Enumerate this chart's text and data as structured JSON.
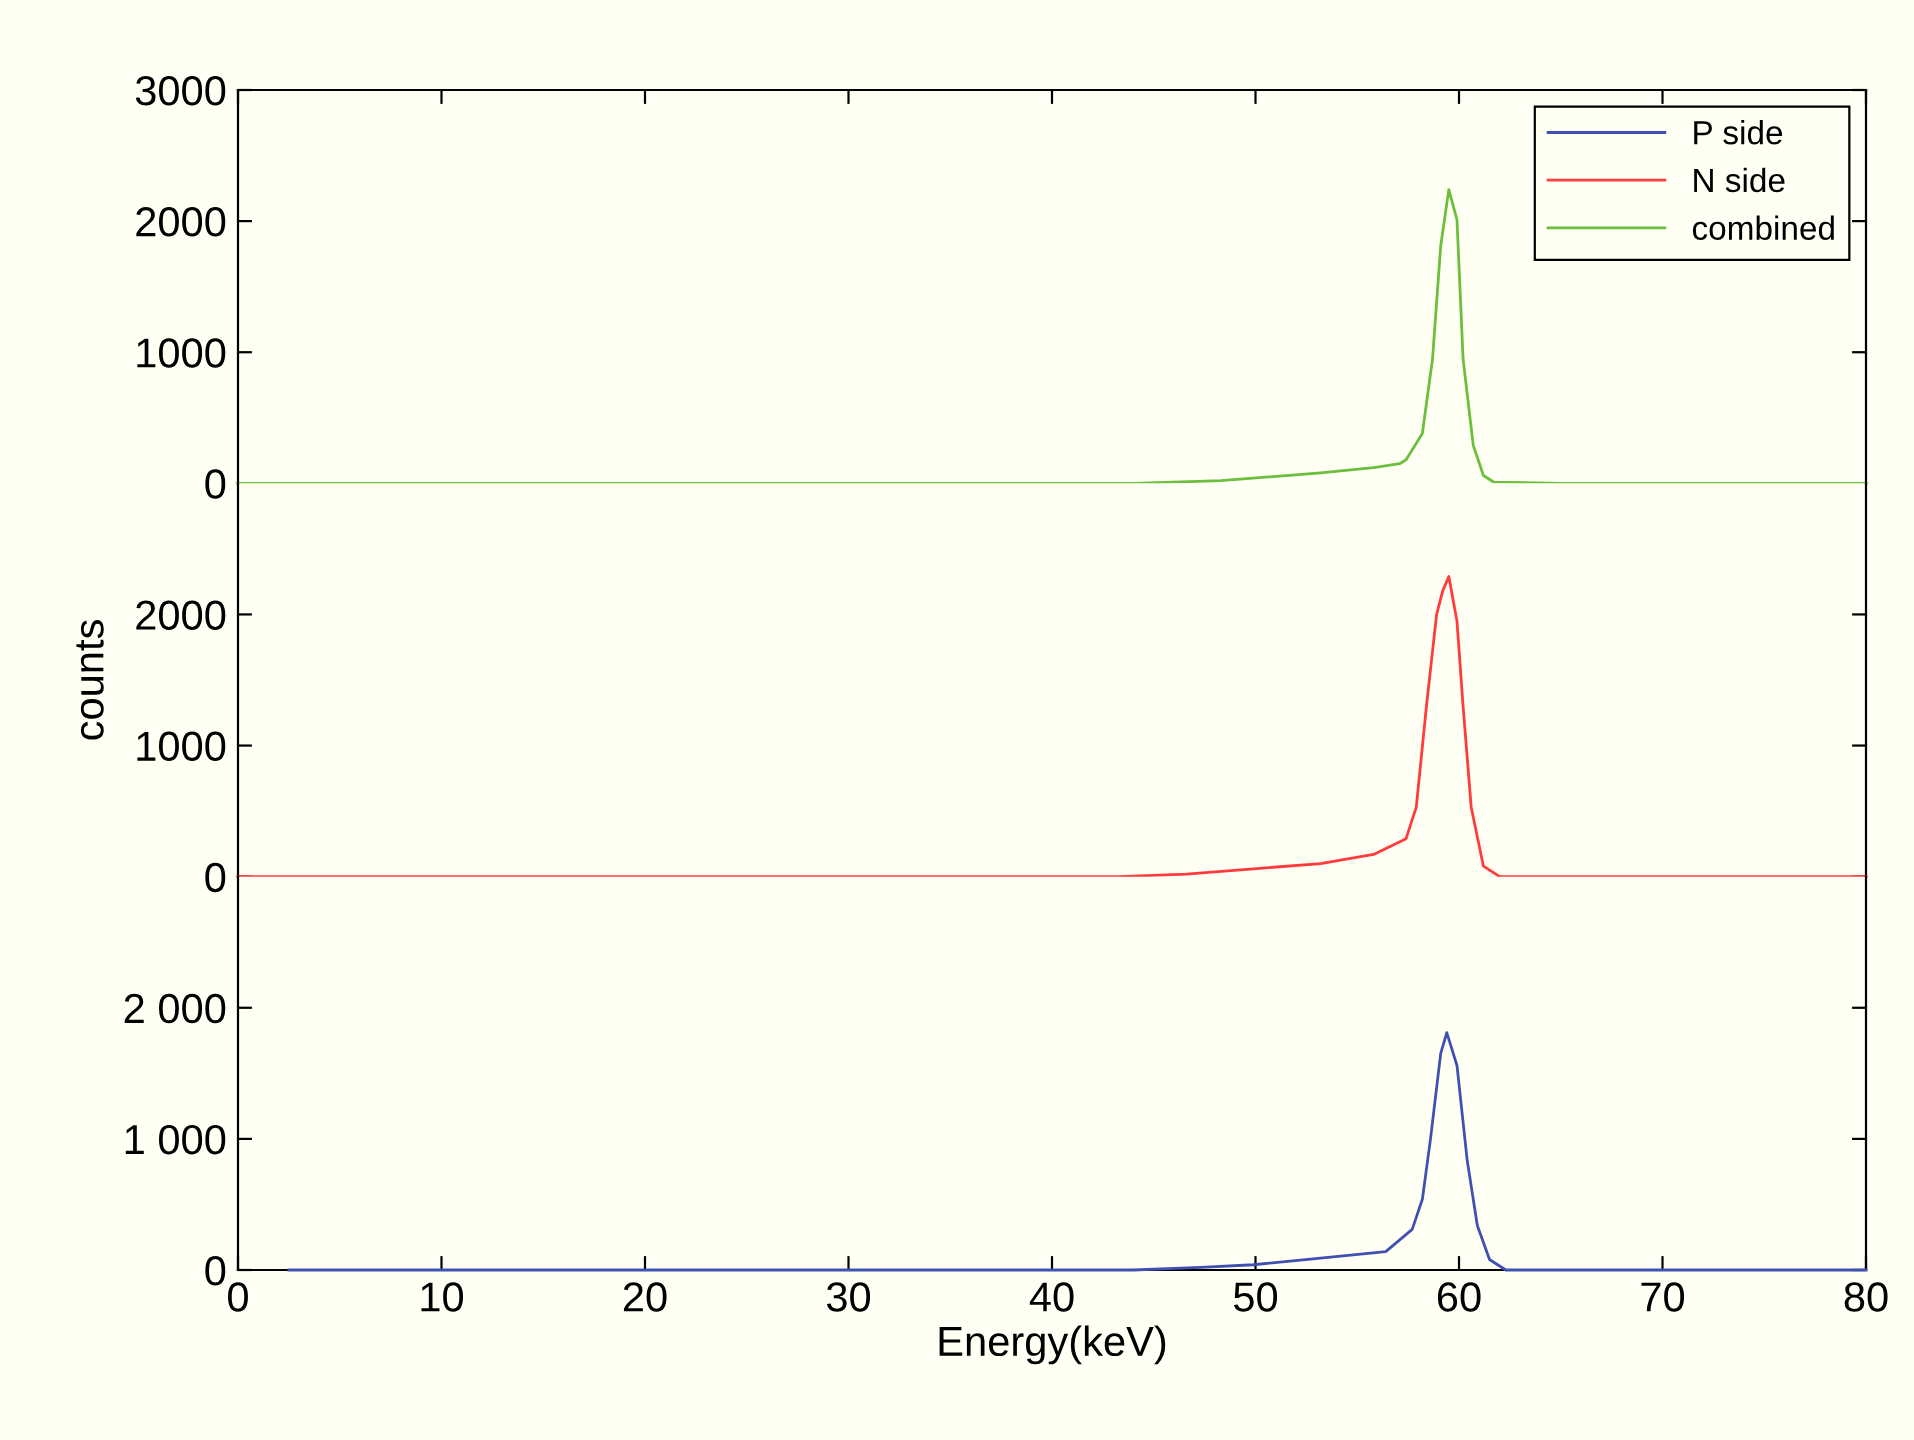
{
  "chart_data": [
    {
      "type": "line",
      "legend": "top right",
      "tick_labels": "y",
      "xlim": [
        0,
        80
      ],
      "xticks": [
        0,
        10,
        20,
        30,
        40,
        50,
        60,
        70,
        80
      ],
      "ylim": [
        0,
        3000
      ],
      "yticks": [
        0,
        1000,
        2000,
        3000
      ],
      "series": [
        {
          "name": "combined",
          "color": "#6cbf3c",
          "x": [
            0,
            10,
            20,
            30,
            40,
            44,
            48.3,
            53.2,
            55.8,
            57.1,
            57.4,
            58.2,
            58.7,
            59.1,
            59.5,
            59.9,
            60.2,
            60.7,
            61.2,
            61.7,
            65,
            70,
            80
          ],
          "values": [
            0,
            0,
            0,
            0,
            0,
            0,
            20,
            80,
            120,
            150,
            180,
            380,
            950,
            1810,
            2240,
            2010,
            950,
            290,
            60,
            10,
            0,
            0,
            0
          ]
        }
      ]
    },
    {
      "type": "line",
      "tick_labels": "y",
      "ylabel": "counts",
      "xlim": [
        0,
        80
      ],
      "xticks": [
        0,
        10,
        20,
        30,
        40,
        50,
        60,
        70,
        80
      ],
      "ylim": [
        0,
        3000
      ],
      "yticks": [
        0,
        1000,
        2000
      ],
      "series": [
        {
          "name": "N side",
          "color": "#ff3b3b",
          "x": [
            0,
            10,
            20,
            30,
            40,
            43.3,
            46.6,
            49.9,
            53.2,
            55.8,
            57.4,
            57.9,
            58.4,
            58.9,
            59.2,
            59.5,
            59.9,
            60.2,
            60.6,
            61.2,
            62.0,
            70,
            80
          ],
          "values": [
            0,
            0,
            0,
            0,
            0,
            0,
            20,
            60,
            100,
            170,
            290,
            530,
            1300,
            2000,
            2180,
            2290,
            1950,
            1300,
            530,
            80,
            0,
            0,
            0
          ]
        }
      ]
    },
    {
      "type": "line",
      "xlabel": "Energy(keV)",
      "xlim": [
        0,
        80
      ],
      "xticks": [
        0,
        10,
        20,
        30,
        40,
        50,
        60,
        70,
        80
      ],
      "ylim": [
        0,
        3000
      ],
      "yticks": [
        0,
        {
          "value": 1000,
          "label": "1 000"
        },
        {
          "value": 2000,
          "label": "2 000"
        }
      ],
      "series": [
        {
          "name": "P side",
          "color": "#4050b0",
          "x": [
            2.5,
            10,
            20,
            30,
            40,
            44,
            47.3,
            49.9,
            53.2,
            56.4,
            57.7,
            58.2,
            58.6,
            59.1,
            59.4,
            59.9,
            60.4,
            60.9,
            61.5,
            62.3,
            70,
            80
          ],
          "values": [
            0,
            0,
            0,
            0,
            0,
            0,
            20,
            40,
            90,
            140,
            310,
            540,
            1000,
            1650,
            1810,
            1560,
            840,
            340,
            80,
            0,
            0,
            0
          ]
        }
      ]
    }
  ]
}
